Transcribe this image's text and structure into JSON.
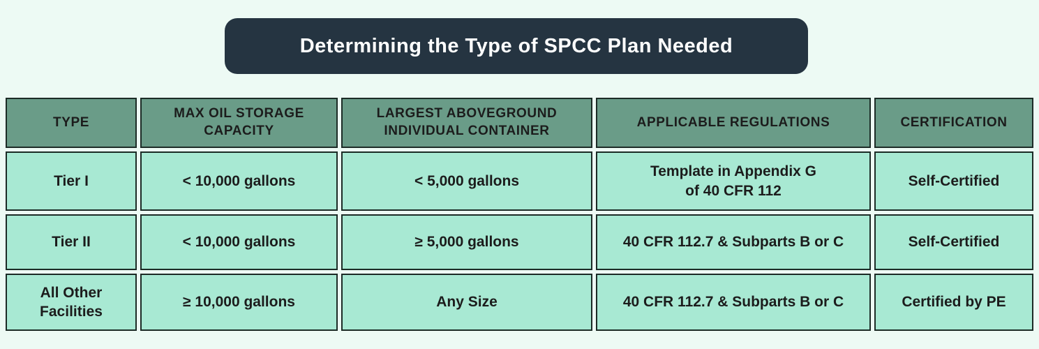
{
  "colors": {
    "page_bg": "#edfaf4",
    "banner_bg": "#253441",
    "banner_text": "#ffffff",
    "header_bg": "#6a9c88",
    "cell_bg": "#a8e9d3",
    "border": "#1c2b26",
    "text": "#1c1c1c"
  },
  "banner": {
    "text": "Determining the Type of SPCC Plan Needed"
  },
  "chart_data": {
    "type": "table",
    "title": "Determining the Type of SPCC Plan Needed",
    "columns": [
      "TYPE",
      "MAX OIL STORAGE\nCAPACITY",
      "LARGEST ABOVEGROUND\nINDIVIDUAL CONTAINER",
      "APPLICABLE REGULATIONS",
      "CERTIFICATION"
    ],
    "rows": [
      [
        "Tier I",
        "< 10,000 gallons",
        "< 5,000 gallons",
        "Template in Appendix G\nof 40 CFR 112",
        "Self-Certified"
      ],
      [
        "Tier II",
        "< 10,000 gallons",
        "≥ 5,000 gallons",
        "40 CFR 112.7 & Subparts B or C",
        "Self-Certified"
      ],
      [
        "All Other\nFacilities",
        "≥ 10,000 gallons",
        "Any Size",
        "40 CFR 112.7 & Subparts B or C",
        "Certified by PE"
      ]
    ]
  }
}
